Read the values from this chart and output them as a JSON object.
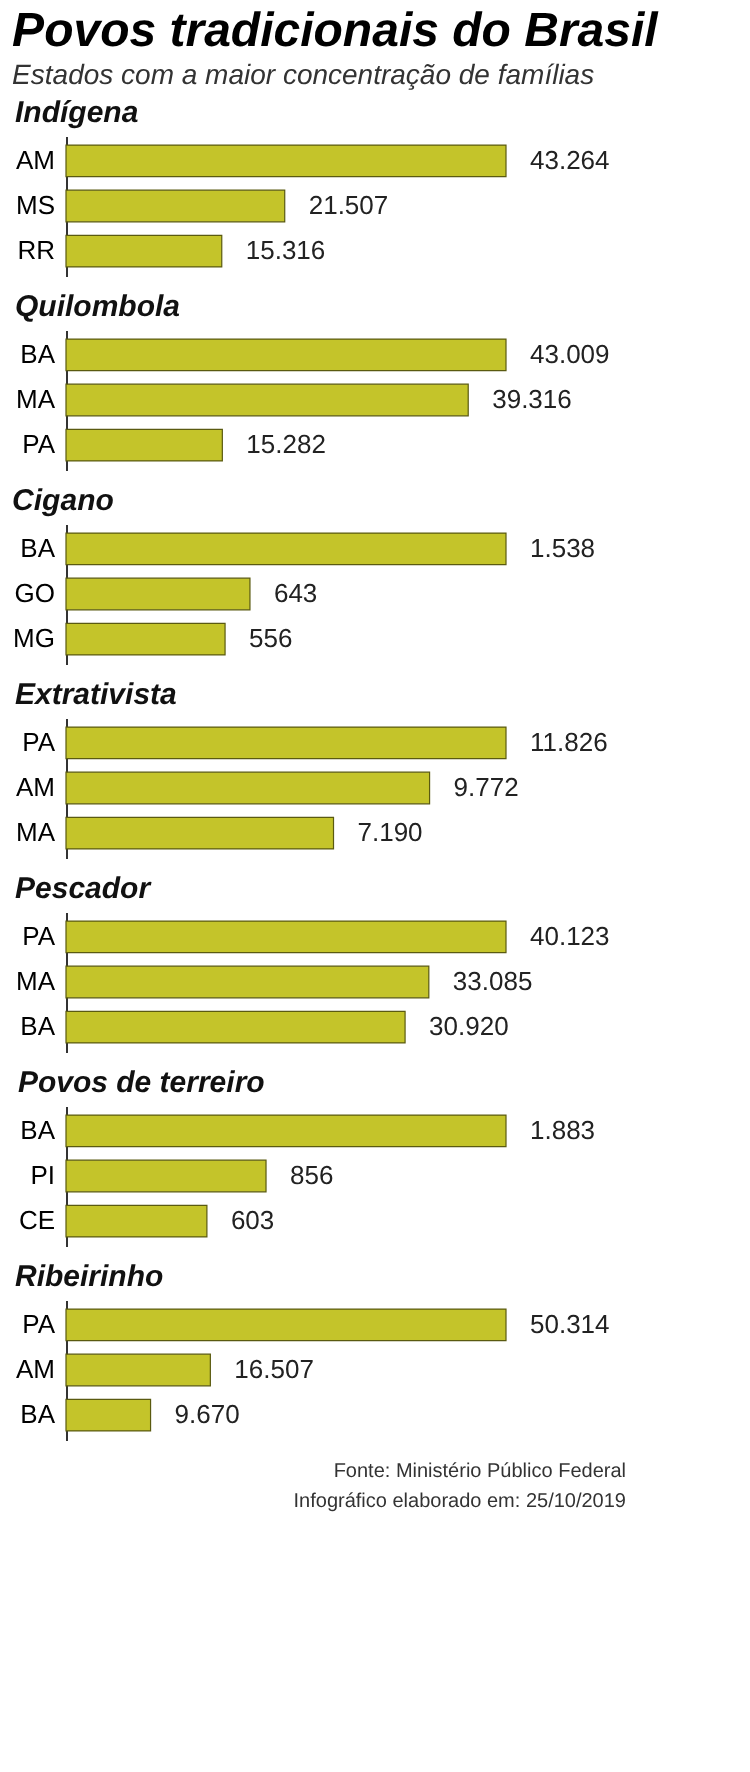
{
  "chart_data": [
    {
      "type": "bar",
      "orientation": "horizontal",
      "title": "Indígena",
      "annotations": [
        "Povos tradicionais do Brasil",
        "Estados com a maior concentração de famílias"
      ],
      "categories": [
        "AM",
        "MS",
        "RR"
      ],
      "values": [
        43264,
        21507,
        15316
      ],
      "value_labels": [
        "43.264",
        "21.507",
        "15.316"
      ],
      "color": "#c4c42a",
      "grid": false,
      "legend": false
    },
    {
      "type": "bar",
      "orientation": "horizontal",
      "title": "Quilombola",
      "categories": [
        "BA",
        "MA",
        "PA"
      ],
      "values": [
        43009,
        39316,
        15282
      ],
      "value_labels": [
        "43.009",
        "39.316",
        "15.282"
      ],
      "color": "#c4c42a",
      "grid": false,
      "legend": false
    },
    {
      "type": "bar",
      "orientation": "horizontal",
      "title": "Cigano",
      "categories": [
        "BA",
        "GO",
        "MG"
      ],
      "values": [
        1538,
        643,
        556
      ],
      "value_labels": [
        "1.538",
        "643",
        "556"
      ],
      "color": "#c4c42a",
      "grid": false,
      "legend": false
    },
    {
      "type": "bar",
      "orientation": "horizontal",
      "title": "Extrativista",
      "categories": [
        "PA",
        "AM",
        "MA"
      ],
      "values": [
        11826,
        9772,
        7190
      ],
      "value_labels": [
        "11.826",
        "9.772",
        "7.190"
      ],
      "color": "#c4c42a",
      "grid": false,
      "legend": false
    },
    {
      "type": "bar",
      "orientation": "horizontal",
      "title": "Pescador",
      "categories": [
        "PA",
        "MA",
        "BA"
      ],
      "values": [
        40123,
        33085,
        30920
      ],
      "value_labels": [
        "40.123",
        "33.085",
        "30.920"
      ],
      "color": "#c4c42a",
      "grid": false,
      "legend": false
    },
    {
      "type": "bar",
      "orientation": "horizontal",
      "title": "Povos de terreiro",
      "categories": [
        "BA",
        "PI",
        "CE"
      ],
      "values": [
        1883,
        856,
        603
      ],
      "value_labels": [
        "1.883",
        "856",
        "603"
      ],
      "color": "#c4c42a",
      "grid": false,
      "legend": false
    },
    {
      "type": "bar",
      "orientation": "horizontal",
      "title": "Ribeirinho",
      "annotations": [
        "Fonte: Ministério Público Federal",
        "Infográfico elaborado em: 25/10/2019"
      ],
      "categories": [
        "PA",
        "AM",
        "BA"
      ],
      "values": [
        50314,
        16507,
        9670
      ],
      "value_labels": [
        "50.314",
        "16.507",
        "9.670"
      ],
      "color": "#c4c42a",
      "grid": false,
      "legend": false
    }
  ]
}
